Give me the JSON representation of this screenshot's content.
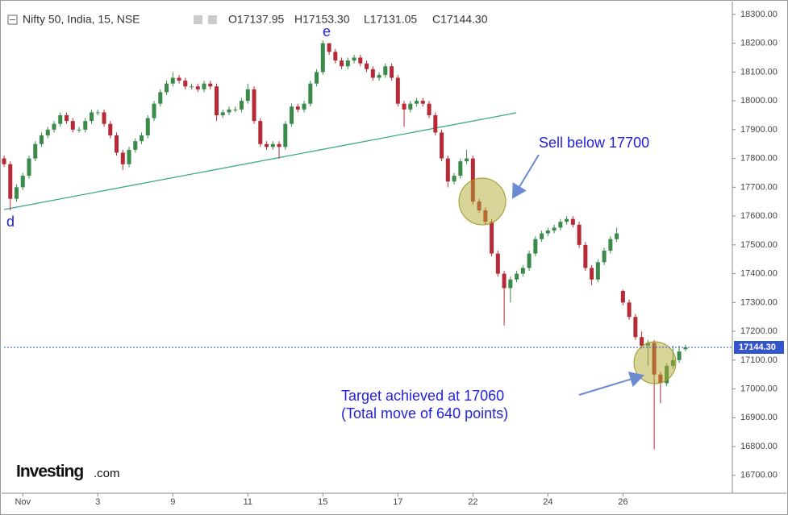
{
  "chart_data": {
    "type": "candlestick",
    "header": {
      "symbol": "Nifty 50, India, 15, NSE",
      "ohlc": [
        "O17137.95",
        "H17153.30",
        "L17131.05",
        "C17144.30"
      ]
    },
    "up_color": "#3a8a4a",
    "down_color": "#b52a36",
    "line_color": "#3355cc",
    "xlim": [
      0,
      116.5
    ],
    "ylim": [
      16638,
      18336
    ],
    "xticks": [
      {
        "value": 3,
        "label": "Nov"
      },
      {
        "value": 15,
        "label": "3"
      },
      {
        "value": 27,
        "label": "9"
      },
      {
        "value": 39,
        "label": "11"
      },
      {
        "value": 51,
        "label": "15"
      },
      {
        "value": 63,
        "label": "17"
      },
      {
        "value": 75,
        "label": "22"
      },
      {
        "value": 87,
        "label": "24"
      },
      {
        "value": 99,
        "label": "26"
      }
    ],
    "yticks": [
      {
        "value": 16700,
        "label": "16700.00"
      },
      {
        "value": 16800,
        "label": "16800.00"
      },
      {
        "value": 16900,
        "label": "16900.00"
      },
      {
        "value": 17000,
        "label": "17000.00"
      },
      {
        "value": 17100,
        "label": "17100.00"
      },
      {
        "value": 17200,
        "label": "17200.00"
      },
      {
        "value": 17300,
        "label": "17300.00"
      },
      {
        "value": 17400,
        "label": "17400.00"
      },
      {
        "value": 17500,
        "label": "17500.00"
      },
      {
        "value": 17600,
        "label": "17600.00"
      },
      {
        "value": 17700,
        "label": "17700.00"
      },
      {
        "value": 17800,
        "label": "17800.00"
      },
      {
        "value": 17900,
        "label": "17900.00"
      },
      {
        "value": 18000,
        "label": "18000.00"
      },
      {
        "value": 18100,
        "label": "18100.00"
      },
      {
        "value": 18200,
        "label": "18200.00"
      },
      {
        "value": 18300,
        "label": "18300.00"
      }
    ],
    "last_price": {
      "value": 17144.3,
      "label": "17144.30"
    },
    "annotations": {
      "d": "d",
      "e": "e",
      "sell": "Sell below 17700",
      "target1": "Target achieved at 17060",
      "target2": "(Total move of 640 points)"
    },
    "logo": {
      "brand": "Investing",
      "suffix": ".com"
    },
    "x": [
      0,
      1,
      2,
      3,
      4,
      5,
      6,
      7,
      8,
      9,
      10,
      11,
      12,
      13,
      14,
      15,
      16,
      17,
      18,
      19,
      20,
      21,
      22,
      23,
      24,
      25,
      26,
      27,
      28,
      29,
      30,
      31,
      32,
      33,
      34,
      35,
      36,
      37,
      38,
      39,
      40,
      41,
      42,
      43,
      44,
      45,
      46,
      47,
      48,
      49,
      50,
      51,
      52,
      53,
      54,
      55,
      56,
      57,
      58,
      59,
      60,
      61,
      62,
      63,
      64,
      65,
      66,
      67,
      68,
      69,
      70,
      71,
      72,
      73,
      74,
      75,
      76,
      77,
      78,
      79,
      80,
      81,
      82,
      83,
      84,
      85,
      86,
      87,
      88,
      89,
      90,
      91,
      92,
      93,
      94,
      95,
      96,
      97,
      98,
      99,
      100,
      101,
      102,
      103,
      104,
      105,
      106,
      107,
      108,
      109
    ],
    "open": [
      17800,
      17780,
      17660,
      17700,
      17740,
      17800,
      17850,
      17880,
      17900,
      17920,
      17950,
      17930,
      17900,
      17900,
      17930,
      17960,
      17960,
      17920,
      17880,
      17820,
      17780,
      17830,
      17860,
      17880,
      17940,
      17990,
      18030,
      18060,
      18080,
      18070,
      18050,
      18050,
      18040,
      18060,
      18050,
      17950,
      17960,
      17970,
      17970,
      18000,
      18040,
      17930,
      17850,
      17840,
      17850,
      17840,
      17920,
      17980,
      17970,
      17990,
      18060,
      18100,
      18200,
      18170,
      18140,
      18120,
      18140,
      18150,
      18130,
      18110,
      18080,
      18090,
      18120,
      18080,
      17990,
      17970,
      17990,
      18000,
      17990,
      17950,
      17890,
      17800,
      17720,
      17740,
      17790,
      17800,
      17650,
      17620,
      17580,
      17470,
      17400,
      17350,
      17380,
      17400,
      17420,
      17470,
      17520,
      17540,
      17550,
      17560,
      17580,
      17590,
      17570,
      17500,
      17420,
      17380,
      17440,
      17480,
      17520,
      17340,
      17300,
      17250,
      17180,
      17150,
      17160,
      17050,
      17020,
      17080,
      17100,
      17137.95
    ],
    "high": [
      17810,
      17790,
      17710,
      17750,
      17810,
      17860,
      17890,
      17910,
      17930,
      17960,
      17960,
      17940,
      17910,
      17940,
      17970,
      17970,
      17970,
      17930,
      17890,
      17830,
      17840,
      17870,
      17890,
      17950,
      18000,
      18040,
      18070,
      18100,
      18090,
      18080,
      18060,
      18060,
      18070,
      18070,
      18060,
      17970,
      17980,
      17980,
      18010,
      18060,
      18050,
      17940,
      17860,
      17860,
      17860,
      17930,
      17990,
      17990,
      18000,
      18070,
      18110,
      18210,
      18200,
      18180,
      18150,
      18150,
      18160,
      18160,
      18140,
      18120,
      18100,
      18130,
      18130,
      18090,
      18000,
      18000,
      18010,
      18010,
      18000,
      17960,
      17900,
      17810,
      17750,
      17800,
      17830,
      17810,
      17660,
      17630,
      17590,
      17480,
      17410,
      17390,
      17410,
      17430,
      17480,
      17530,
      17550,
      17560,
      17570,
      17590,
      17600,
      17600,
      17580,
      17510,
      17430,
      17450,
      17490,
      17530,
      17560,
      17345,
      17310,
      17260,
      17200,
      17170,
      17170,
      17060,
      17090,
      17150,
      17150,
      17153.3
    ],
    "low": [
      17770,
      17620,
      17650,
      17690,
      17730,
      17790,
      17840,
      17870,
      17890,
      17910,
      17920,
      17890,
      17890,
      17890,
      17920,
      17950,
      17910,
      17870,
      17810,
      17760,
      17770,
      17820,
      17850,
      17870,
      17930,
      17980,
      18020,
      18050,
      18060,
      18040,
      18040,
      18030,
      18030,
      18040,
      17930,
      17940,
      17950,
      17960,
      17960,
      17990,
      17920,
      17840,
      17830,
      17830,
      17800,
      17830,
      17910,
      17960,
      17960,
      17980,
      18050,
      18090,
      18160,
      18130,
      18110,
      18110,
      18130,
      18120,
      18100,
      18070,
      18070,
      18080,
      18070,
      17980,
      17910,
      17960,
      17980,
      17980,
      17940,
      17880,
      17790,
      17700,
      17710,
      17730,
      17780,
      17640,
      17610,
      17570,
      17460,
      17390,
      17220,
      17300,
      17370,
      17390,
      17410,
      17460,
      17510,
      17530,
      17540,
      17550,
      17570,
      17560,
      17490,
      17410,
      17360,
      17370,
      17430,
      17470,
      17510,
      17290,
      17240,
      17170,
      17140,
      17080,
      16790,
      16950,
      17010,
      17070,
      17090,
      17131.05
    ],
    "close": [
      17780,
      17660,
      17700,
      17740,
      17800,
      17850,
      17880,
      17900,
      17920,
      17950,
      17930,
      17900,
      17900,
      17930,
      17960,
      17960,
      17920,
      17880,
      17820,
      17780,
      17830,
      17860,
      17880,
      17940,
      17990,
      18030,
      18060,
      18080,
      18070,
      18050,
      18050,
      18040,
      18060,
      18050,
      17950,
      17960,
      17970,
      17970,
      18000,
      18040,
      17930,
      17850,
      17840,
      17850,
      17840,
      17920,
      17980,
      17970,
      17990,
      18060,
      18100,
      18200,
      18170,
      18140,
      18120,
      18140,
      18150,
      18130,
      18110,
      18080,
      18090,
      18120,
      18080,
      17990,
      17970,
      17990,
      18000,
      17990,
      17950,
      17890,
      17800,
      17720,
      17740,
      17790,
      17800,
      17650,
      17620,
      17580,
      17470,
      17400,
      17350,
      17380,
      17400,
      17420,
      17470,
      17520,
      17540,
      17550,
      17560,
      17580,
      17590,
      17570,
      17500,
      17420,
      17380,
      17440,
      17480,
      17520,
      17540,
      17300,
      17250,
      17180,
      17150,
      17160,
      17050,
      17020,
      17080,
      17100,
      17130,
      17144.3
    ]
  }
}
